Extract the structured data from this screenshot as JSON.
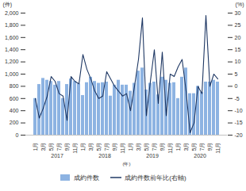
{
  "chart_data": {
    "type": "bar",
    "categories": [
      "1月",
      null,
      "3月",
      null,
      "5月",
      null,
      "7月",
      null,
      "9月",
      null,
      "11月",
      null,
      "1月",
      null,
      "3月",
      null,
      "5月",
      null,
      "7月",
      null,
      "9月",
      null,
      "11月",
      null,
      "1月",
      null,
      "3月",
      null,
      "5月",
      null,
      "7月",
      null,
      "9月",
      null,
      "11月",
      null,
      "1月",
      null,
      "3月",
      null,
      "5月",
      null,
      "7月",
      null,
      "9月",
      null,
      "11月"
    ],
    "years": [
      "2017",
      "2018",
      "2019",
      "2020"
    ],
    "x_label": "(年)",
    "y_label": "(件)",
    "y2_label": "(%)",
    "ylim": [
      0,
      2000
    ],
    "yticks": [
      0,
      200,
      400,
      600,
      800,
      {
        "value": 1000,
        "label": "1,000"
      },
      {
        "value": 1200,
        "label": "1,200"
      },
      {
        "value": 1400,
        "label": "1,400"
      },
      {
        "value": 1600,
        "label": "1,600"
      },
      {
        "value": 1800,
        "label": "1,800"
      },
      {
        "value": 2000,
        "label": "2,000"
      }
    ],
    "y2lim": [
      -20,
      30
    ],
    "y2ticks": [
      -20,
      -15,
      -10,
      -5,
      0,
      5,
      10,
      15,
      20,
      25,
      30
    ],
    "legend": "bottom",
    "series": [
      {
        "name": "成約件数",
        "type": "bar",
        "color": "#8db3e2",
        "values": [
          600,
          830,
          930,
          900,
          880,
          820,
          880,
          600,
          830,
          920,
          880,
          840,
          650,
          860,
          950,
          880,
          850,
          860,
          870,
          640,
          820,
          900,
          820,
          820,
          720,
          850,
          1050,
          1100,
          740,
          850,
          870,
          660,
          950,
          900,
          850,
          860,
          600,
          950,
          1100,
          680,
          680,
          800,
          700,
          870,
          870,
          900,
          870
        ]
      },
      {
        "name": "成約件数前年比(右軸)",
        "type": "line",
        "axis": "y2",
        "color": "#1f3864",
        "values": [
          -5,
          -13,
          -9,
          -4,
          4,
          2,
          -3,
          -4,
          -14,
          4,
          2,
          1,
          13,
          7,
          3,
          -2,
          -5,
          -4,
          6,
          3,
          0,
          -2,
          -4,
          -3,
          -10,
          0,
          11,
          28,
          -12,
          2,
          15,
          -7,
          14,
          -12,
          5,
          4,
          8,
          11,
          -2,
          -19,
          -15,
          0,
          -3,
          29,
          0,
          5,
          3
        ]
      }
    ]
  }
}
